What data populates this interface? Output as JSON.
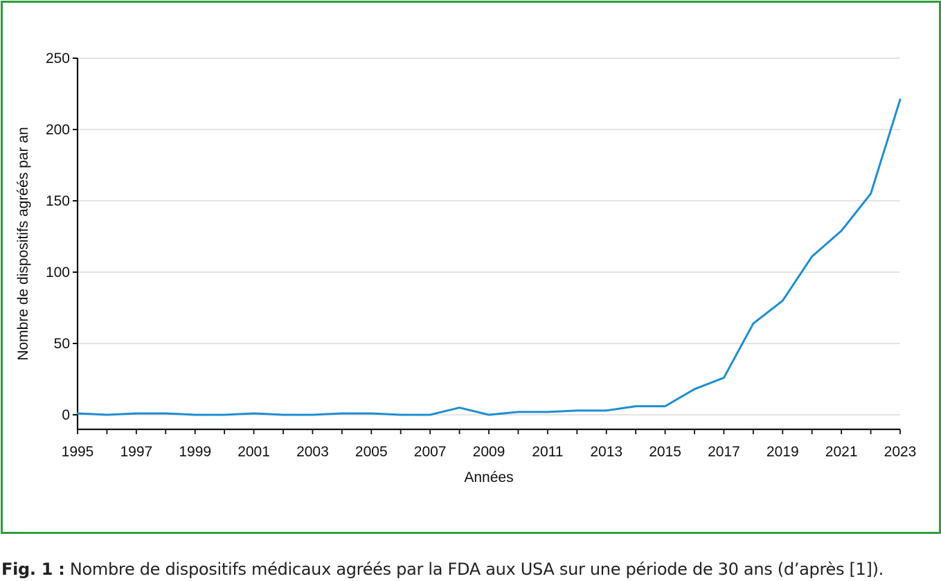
{
  "chart_data": {
    "type": "line",
    "title": "",
    "xlabel": "Années",
    "ylabel": "Nombre de dispositifs agréés par an",
    "xlim": [
      1995,
      2023
    ],
    "ylim": [
      0,
      250
    ],
    "yticks": [
      0,
      50,
      100,
      150,
      200,
      250
    ],
    "xtick_labels": [
      "1995",
      "1997",
      "1999",
      "2001",
      "2003",
      "2005",
      "2007",
      "2009",
      "2011",
      "2013",
      "2015",
      "2017",
      "2019",
      "2021",
      "2023"
    ],
    "grid": "horizontal",
    "legend": "none",
    "series": [
      {
        "color": "#1f8ed1",
        "x": [
          1995,
          1996,
          1997,
          1998,
          1999,
          2000,
          2001,
          2002,
          2003,
          2004,
          2005,
          2006,
          2007,
          2008,
          2009,
          2010,
          2011,
          2012,
          2013,
          2014,
          2015,
          2016,
          2017,
          2018,
          2019,
          2020,
          2021,
          2022,
          2023
        ],
        "values": [
          1,
          0,
          1,
          1,
          0,
          0,
          1,
          0,
          0,
          1,
          1,
          0,
          0,
          5,
          0,
          2,
          2,
          3,
          3,
          6,
          6,
          18,
          26,
          64,
          80,
          111,
          129,
          155,
          221
        ]
      }
    ]
  },
  "caption": {
    "label": "Fig. 1 :",
    "text": " Nombre de dispositifs médicaux agréés par la FDA aux USA sur une période de 30 ans (d’après [1])."
  },
  "colors": {
    "frame": "#2e9e3a",
    "line": "#1f8ed1",
    "grid": "#d4d4d4",
    "axis": "#111111"
  }
}
